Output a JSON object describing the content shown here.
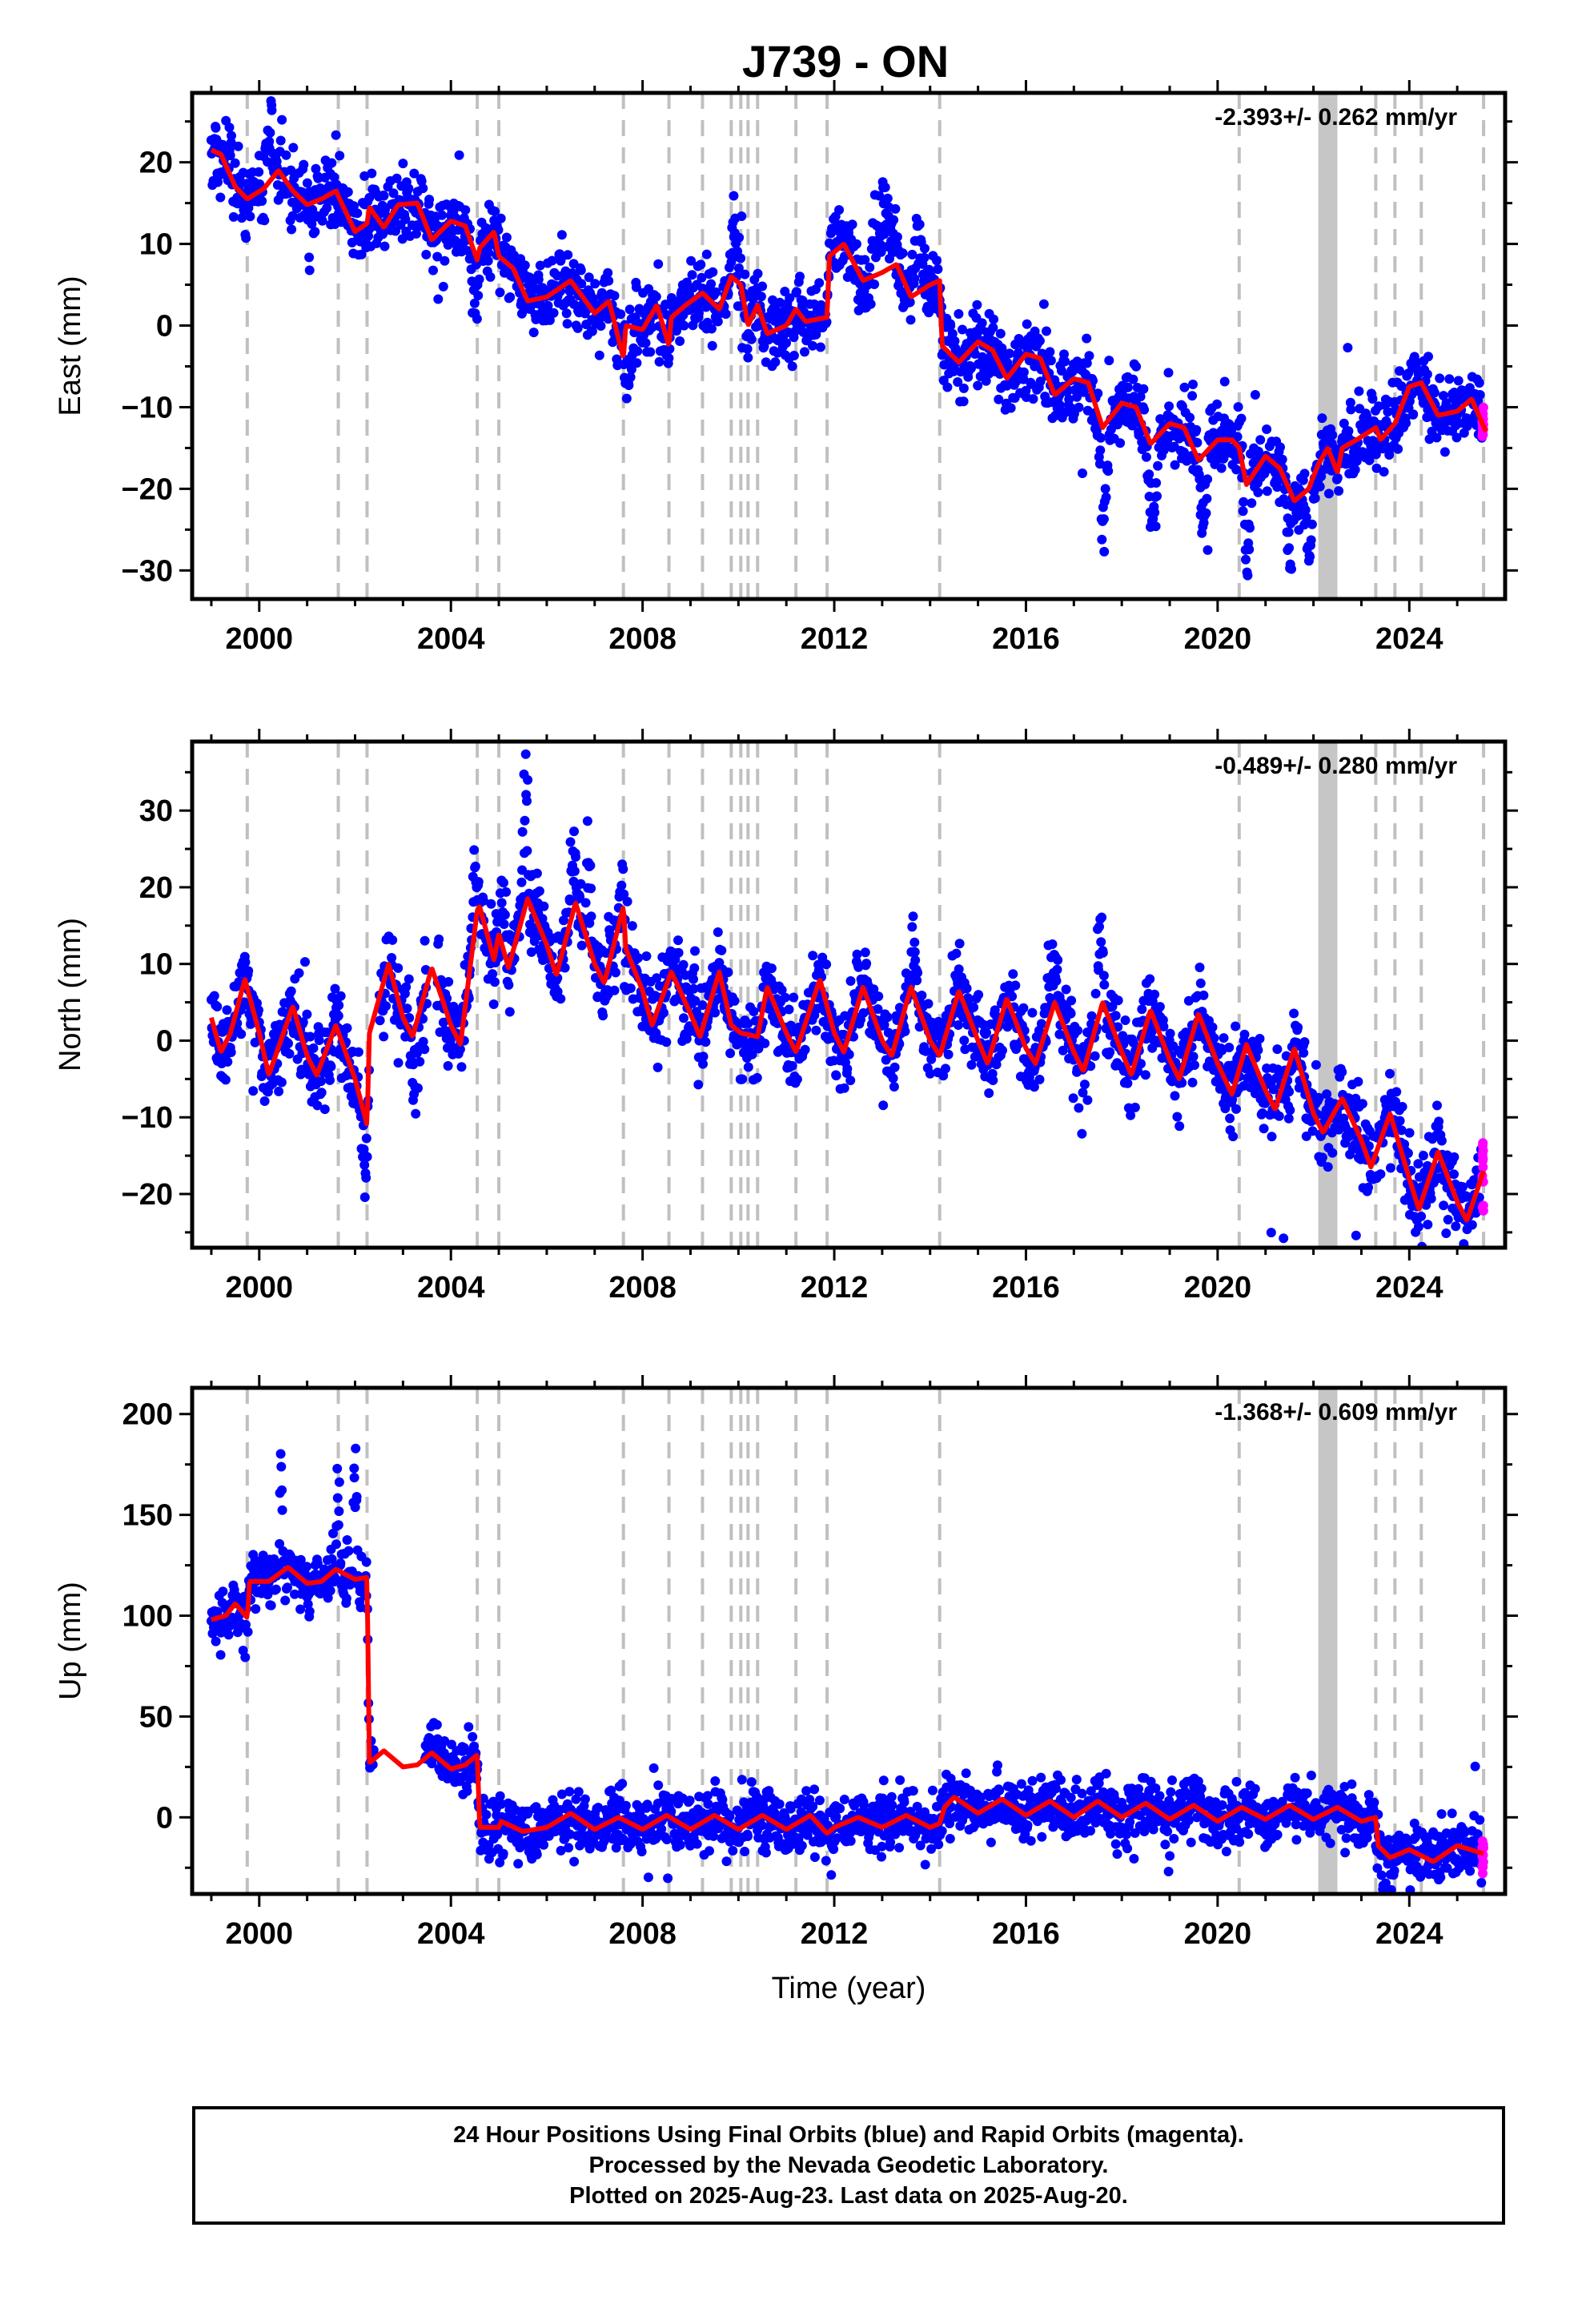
{
  "title": "J739 - ON",
  "footer": {
    "line1": "24 Hour Positions Using Final Orbits (blue) and Rapid Orbits (magenta).",
    "line2": "Processed by the Nevada Geodetic Laboratory.",
    "line3": "Plotted on 2025-Aug-23. Last data on 2025-Aug-20."
  },
  "colors": {
    "final_orbits": "#0000ff",
    "rapid_orbits": "#ff00ff",
    "model": "#ff0000",
    "events": "#c0c0c0"
  },
  "chart_data": [
    {
      "type": "scatter",
      "component": "East",
      "ylabel": "East (mm)",
      "rate_text": "-2.393+/- 0.262 mm/yr",
      "xlim": [
        1998.6,
        2026.0
      ],
      "ylim": [
        -33.5,
        28.5
      ],
      "x_ticks": [
        2000,
        2004,
        2008,
        2012,
        2016,
        2020,
        2024
      ],
      "y_ticks": [
        -30,
        -20,
        -10,
        0,
        10,
        20
      ],
      "events": [
        1999.75,
        2001.65,
        2002.25,
        2004.55,
        2005.0,
        2007.6,
        2008.55,
        2009.25,
        2009.85,
        2010.05,
        2010.2,
        2010.4,
        2011.2,
        2011.85,
        2014.2,
        2020.45,
        2023.3,
        2023.7,
        2024.25,
        2025.55
      ],
      "maintenance_band": [
        2022.1,
        2022.5
      ],
      "gaps": [],
      "model_knots": [
        [
          1999.0,
          21.5
        ],
        [
          1999.2,
          21.0
        ],
        [
          1999.5,
          17.0
        ],
        [
          1999.75,
          15.5
        ],
        [
          2000.1,
          16.8
        ],
        [
          2000.4,
          19.0
        ],
        [
          2000.7,
          16.5
        ],
        [
          2001.0,
          14.8
        ],
        [
          2001.3,
          15.5
        ],
        [
          2001.6,
          16.5
        ],
        [
          2002.0,
          11.5
        ],
        [
          2002.25,
          12.5
        ],
        [
          2002.3,
          14.5
        ],
        [
          2002.6,
          12.0
        ],
        [
          2002.9,
          14.8
        ],
        [
          2003.3,
          15.0
        ],
        [
          2003.6,
          10.5
        ],
        [
          2004.0,
          12.8
        ],
        [
          2004.3,
          12.2
        ],
        [
          2004.55,
          8.0
        ],
        [
          2004.6,
          9.5
        ],
        [
          2004.9,
          11.5
        ],
        [
          2005.0,
          8.5
        ],
        [
          2005.3,
          7.0
        ],
        [
          2005.6,
          3.0
        ],
        [
          2006.0,
          3.5
        ],
        [
          2006.5,
          5.5
        ],
        [
          2007.0,
          1.5
        ],
        [
          2007.3,
          3.0
        ],
        [
          2007.6,
          -4.0
        ],
        [
          2007.65,
          0.0
        ],
        [
          2008.0,
          -0.5
        ],
        [
          2008.3,
          2.5
        ],
        [
          2008.55,
          -2.5
        ],
        [
          2008.6,
          1.0
        ],
        [
          2008.9,
          2.5
        ],
        [
          2009.25,
          4.0
        ],
        [
          2009.6,
          2.0
        ],
        [
          2009.85,
          6.0
        ],
        [
          2010.05,
          5.0
        ],
        [
          2010.2,
          0.0
        ],
        [
          2010.4,
          2.5
        ],
        [
          2010.6,
          -1.0
        ],
        [
          2011.0,
          0.0
        ],
        [
          2011.2,
          2.0
        ],
        [
          2011.4,
          0.5
        ],
        [
          2011.85,
          1.0
        ],
        [
          2011.9,
          8.5
        ],
        [
          2012.2,
          10.0
        ],
        [
          2012.6,
          5.5
        ],
        [
          2013.0,
          6.5
        ],
        [
          2013.3,
          7.5
        ],
        [
          2013.6,
          3.5
        ],
        [
          2014.0,
          5.0
        ],
        [
          2014.2,
          5.5
        ],
        [
          2014.25,
          -2.5
        ],
        [
          2014.6,
          -4.5
        ],
        [
          2015.0,
          -2.0
        ],
        [
          2015.3,
          -3.0
        ],
        [
          2015.6,
          -6.5
        ],
        [
          2016.0,
          -3.5
        ],
        [
          2016.3,
          -4.0
        ],
        [
          2016.6,
          -8.5
        ],
        [
          2017.0,
          -6.5
        ],
        [
          2017.3,
          -7.0
        ],
        [
          2017.6,
          -12.5
        ],
        [
          2018.0,
          -9.5
        ],
        [
          2018.3,
          -10.0
        ],
        [
          2018.6,
          -14.5
        ],
        [
          2019.0,
          -12.0
        ],
        [
          2019.3,
          -12.5
        ],
        [
          2019.6,
          -16.5
        ],
        [
          2020.0,
          -14.0
        ],
        [
          2020.3,
          -14.0
        ],
        [
          2020.45,
          -15.0
        ],
        [
          2020.6,
          -19.5
        ],
        [
          2021.0,
          -16.0
        ],
        [
          2021.3,
          -17.5
        ],
        [
          2021.6,
          -21.5
        ],
        [
          2021.9,
          -20.0
        ],
        [
          2022.1,
          -17.0
        ],
        [
          2022.3,
          -15.0
        ],
        [
          2022.5,
          -18.0
        ],
        [
          2022.6,
          -15.0
        ],
        [
          2022.9,
          -14.0
        ],
        [
          2023.3,
          -12.5
        ],
        [
          2023.4,
          -14.0
        ],
        [
          2023.7,
          -12.0
        ],
        [
          2024.0,
          -7.5
        ],
        [
          2024.25,
          -7.0
        ],
        [
          2024.6,
          -11.0
        ],
        [
          2025.0,
          -10.5
        ],
        [
          2025.3,
          -9.0
        ],
        [
          2025.6,
          -13.0
        ]
      ],
      "spikes": [
        [
          2000.1,
          2000.35,
          8.5
        ],
        [
          2004.4,
          2004.6,
          -6.0
        ],
        [
          2007.6,
          2007.8,
          -8.5
        ],
        [
          2009.8,
          2010.0,
          6.0
        ],
        [
          2012.75,
          2013.3,
          11.0
        ],
        [
          2013.6,
          2013.9,
          9.5
        ],
        [
          2017.5,
          2017.75,
          -16.0
        ],
        [
          2018.5,
          2018.8,
          -12.0
        ],
        [
          2019.6,
          2019.8,
          -11.0
        ],
        [
          2020.5,
          2020.7,
          -10.0
        ],
        [
          2021.4,
          2021.6,
          -9.0
        ],
        [
          2021.8,
          2022.0,
          -12.0
        ]
      ],
      "noise": 2.2,
      "rapid_tail": [
        2025.52,
        2025.64
      ],
      "x_noise_seed": 1
    },
    {
      "type": "scatter",
      "component": "North",
      "ylabel": "North (mm)",
      "rate_text": "-0.489+/- 0.280 mm/yr",
      "xlim": [
        1998.6,
        2026.0
      ],
      "ylim": [
        -27,
        39
      ],
      "x_ticks": [
        2000,
        2004,
        2008,
        2012,
        2016,
        2020,
        2024
      ],
      "y_ticks": [
        -20,
        -10,
        0,
        10,
        20,
        30
      ],
      "events": [
        1999.75,
        2001.65,
        2002.25,
        2004.55,
        2005.0,
        2007.6,
        2008.55,
        2009.25,
        2009.85,
        2010.05,
        2010.2,
        2010.4,
        2011.2,
        2011.85,
        2014.2,
        2020.45,
        2023.3,
        2023.7,
        2024.25,
        2025.55
      ],
      "maintenance_band": [
        2022.1,
        2022.5
      ],
      "gaps": [
        [
          2002.3,
          2002.5
        ],
        [
          2003.5,
          2003.7
        ]
      ],
      "model_knots": [
        [
          1999.0,
          3.0
        ],
        [
          1999.2,
          -1.5
        ],
        [
          1999.4,
          1.0
        ],
        [
          1999.7,
          8.0
        ],
        [
          2000.0,
          1.0
        ],
        [
          2000.2,
          -4.5
        ],
        [
          2000.7,
          4.5
        ],
        [
          2001.0,
          -2.0
        ],
        [
          2001.2,
          -4.5
        ],
        [
          2001.6,
          2.0
        ],
        [
          2002.0,
          -5.0
        ],
        [
          2002.25,
          -11.0
        ],
        [
          2002.3,
          1.0
        ],
        [
          2002.7,
          10.0
        ],
        [
          2003.0,
          3.0
        ],
        [
          2003.2,
          0.5
        ],
        [
          2003.6,
          9.5
        ],
        [
          2004.0,
          2.0
        ],
        [
          2004.2,
          -0.5
        ],
        [
          2004.55,
          17.0
        ],
        [
          2004.6,
          17.5
        ],
        [
          2004.9,
          10.5
        ],
        [
          2005.0,
          14.0
        ],
        [
          2005.2,
          9.5
        ],
        [
          2005.6,
          18.5
        ],
        [
          2006.0,
          12.5
        ],
        [
          2006.2,
          8.5
        ],
        [
          2006.6,
          18.0
        ],
        [
          2007.0,
          10.0
        ],
        [
          2007.2,
          7.5
        ],
        [
          2007.6,
          17.5
        ],
        [
          2007.65,
          12.0
        ],
        [
          2008.0,
          6.5
        ],
        [
          2008.2,
          2.0
        ],
        [
          2008.6,
          9.0
        ],
        [
          2009.0,
          3.5
        ],
        [
          2009.2,
          0.5
        ],
        [
          2009.6,
          9.0
        ],
        [
          2009.85,
          2.0
        ],
        [
          2010.05,
          1.0
        ],
        [
          2010.4,
          0.5
        ],
        [
          2010.6,
          7.0
        ],
        [
          2011.0,
          1.0
        ],
        [
          2011.2,
          -1.5
        ],
        [
          2011.7,
          8.0
        ],
        [
          2012.0,
          1.0
        ],
        [
          2012.2,
          -1.5
        ],
        [
          2012.6,
          7.0
        ],
        [
          2013.0,
          0.0
        ],
        [
          2013.2,
          -2.0
        ],
        [
          2013.6,
          7.0
        ],
        [
          2014.0,
          0.0
        ],
        [
          2014.2,
          -2.0
        ],
        [
          2014.6,
          6.5
        ],
        [
          2015.0,
          0.0
        ],
        [
          2015.2,
          -3.0
        ],
        [
          2015.6,
          5.5
        ],
        [
          2016.0,
          -1.0
        ],
        [
          2016.2,
          -3.0
        ],
        [
          2016.6,
          5.0
        ],
        [
          2017.0,
          -1.5
        ],
        [
          2017.2,
          -4.0
        ],
        [
          2017.6,
          5.0
        ],
        [
          2018.0,
          -1.5
        ],
        [
          2018.2,
          -4.5
        ],
        [
          2018.6,
          4.0
        ],
        [
          2019.0,
          -2.5
        ],
        [
          2019.2,
          -5.0
        ],
        [
          2019.6,
          3.5
        ],
        [
          2020.0,
          -3.0
        ],
        [
          2020.3,
          -7.0
        ],
        [
          2020.6,
          -0.5
        ],
        [
          2021.0,
          -6.5
        ],
        [
          2021.2,
          -9.0
        ],
        [
          2021.6,
          -1.0
        ],
        [
          2022.0,
          -9.5
        ],
        [
          2022.2,
          -12.0
        ],
        [
          2022.6,
          -7.5
        ],
        [
          2023.0,
          -13.0
        ],
        [
          2023.2,
          -16.5
        ],
        [
          2023.6,
          -9.5
        ],
        [
          2024.0,
          -18.0
        ],
        [
          2024.2,
          -22.0
        ],
        [
          2024.6,
          -14.5
        ],
        [
          2025.0,
          -21.0
        ],
        [
          2025.2,
          -23.5
        ],
        [
          2025.55,
          -17.0
        ]
      ],
      "spikes": [
        [
          2004.4,
          2004.6,
          9.0
        ],
        [
          2005.0,
          2005.2,
          6.0
        ],
        [
          2005.45,
          2005.65,
          18.0
        ],
        [
          2006.45,
          2006.65,
          12.0
        ],
        [
          2006.8,
          2006.95,
          16.0
        ],
        [
          2009.0,
          2009.15,
          6.0
        ],
        [
          2012.6,
          2012.75,
          5.0
        ],
        [
          2013.6,
          2013.75,
          10.0
        ],
        [
          2017.45,
          2017.65,
          12.0
        ],
        [
          2016.5,
          2016.7,
          8.0
        ],
        [
          2002.1,
          2002.3,
          -10.0
        ],
        [
          2003.1,
          2003.4,
          -9.0
        ]
      ],
      "noise": 2.6,
      "rapid_tail": [
        2025.52,
        2025.64
      ],
      "x_noise_seed": 2
    },
    {
      "type": "scatter",
      "component": "Up",
      "ylabel": "Up (mm)",
      "xlabel": "Time (year)",
      "rate_text": "-1.368+/- 0.609 mm/yr",
      "xlim": [
        1998.6,
        2026.0
      ],
      "ylim": [
        -38,
        213
      ],
      "x_ticks": [
        2000,
        2004,
        2008,
        2012,
        2016,
        2020,
        2024
      ],
      "y_ticks": [
        0,
        50,
        100,
        150,
        200
      ],
      "events": [
        1999.75,
        2001.65,
        2002.25,
        2004.55,
        2005.0,
        2007.6,
        2008.55,
        2009.25,
        2009.85,
        2010.05,
        2010.2,
        2010.4,
        2011.2,
        2011.85,
        2014.2,
        2020.45,
        2023.3,
        2023.7,
        2024.25,
        2025.55
      ],
      "maintenance_band": [
        2022.1,
        2022.5
      ],
      "gaps": [
        [
          2002.4,
          2003.45
        ]
      ],
      "model_knots": [
        [
          1999.0,
          98.0
        ],
        [
          1999.3,
          100.0
        ],
        [
          1999.5,
          106.0
        ],
        [
          1999.75,
          99.0
        ],
        [
          1999.8,
          117.0
        ],
        [
          2000.2,
          117.0
        ],
        [
          2000.6,
          124.0
        ],
        [
          2001.0,
          116.0
        ],
        [
          2001.3,
          117.0
        ],
        [
          2001.6,
          123.0
        ],
        [
          2002.0,
          118.0
        ],
        [
          2002.25,
          119.0
        ],
        [
          2002.3,
          27.0
        ],
        [
          2002.6,
          33.0
        ],
        [
          2003.0,
          25.0
        ],
        [
          2003.3,
          26.0
        ],
        [
          2003.6,
          32.0
        ],
        [
          2004.0,
          24.0
        ],
        [
          2004.3,
          26.0
        ],
        [
          2004.55,
          31.0
        ],
        [
          2004.6,
          -5.0
        ],
        [
          2005.0,
          -5.0
        ],
        [
          2005.05,
          -2.0
        ],
        [
          2005.5,
          -7.0
        ],
        [
          2006.0,
          -5.0
        ],
        [
          2006.5,
          2.0
        ],
        [
          2007.0,
          -6.0
        ],
        [
          2007.5,
          0.0
        ],
        [
          2008.0,
          -6.0
        ],
        [
          2008.5,
          1.0
        ],
        [
          2009.0,
          -6.0
        ],
        [
          2009.5,
          1.0
        ],
        [
          2010.0,
          -6.0
        ],
        [
          2010.5,
          1.0
        ],
        [
          2011.0,
          -6.0
        ],
        [
          2011.5,
          1.0
        ],
        [
          2011.85,
          -8.0
        ],
        [
          2012.0,
          -5.0
        ],
        [
          2012.5,
          0.0
        ],
        [
          2013.0,
          -5.0
        ],
        [
          2013.5,
          1.0
        ],
        [
          2014.0,
          -5.0
        ],
        [
          2014.2,
          -3.0
        ],
        [
          2014.3,
          5.0
        ],
        [
          2014.5,
          10.0
        ],
        [
          2015.0,
          2.0
        ],
        [
          2015.5,
          9.0
        ],
        [
          2016.0,
          1.0
        ],
        [
          2016.5,
          8.0
        ],
        [
          2017.0,
          0.0
        ],
        [
          2017.5,
          8.0
        ],
        [
          2018.0,
          0.0
        ],
        [
          2018.5,
          7.0
        ],
        [
          2019.0,
          -1.0
        ],
        [
          2019.5,
          6.0
        ],
        [
          2020.0,
          -2.0
        ],
        [
          2020.5,
          5.0
        ],
        [
          2021.0,
          -1.0
        ],
        [
          2021.5,
          6.0
        ],
        [
          2022.0,
          -1.0
        ],
        [
          2022.5,
          5.0
        ],
        [
          2023.0,
          -2.0
        ],
        [
          2023.3,
          0.0
        ],
        [
          2023.35,
          -14.0
        ],
        [
          2023.6,
          -20.0
        ],
        [
          2024.0,
          -16.0
        ],
        [
          2024.5,
          -22.0
        ],
        [
          2025.0,
          -14.0
        ],
        [
          2025.55,
          -18.0
        ]
      ],
      "spikes": [
        [
          2001.95,
          2002.05,
          90.0
        ],
        [
          2000.4,
          2000.5,
          55.0
        ],
        [
          2001.6,
          2001.7,
          60.0
        ]
      ],
      "noise": 7.0,
      "rapid_tail": [
        2025.52,
        2025.64
      ],
      "x_noise_seed": 3
    }
  ]
}
